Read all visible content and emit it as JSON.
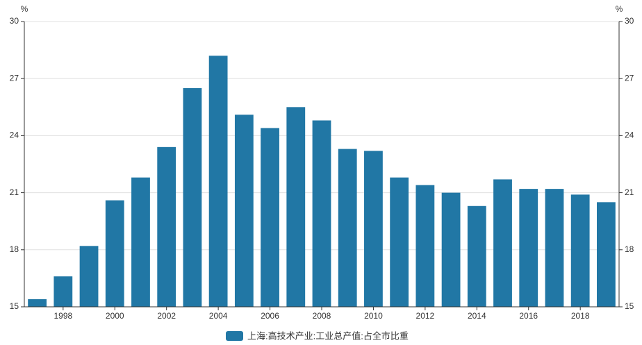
{
  "chart_data": {
    "type": "bar",
    "categories": [
      null,
      "1998",
      null,
      "2000",
      null,
      "2002",
      null,
      "2004",
      null,
      "2006",
      null,
      "2008",
      null,
      "2010",
      null,
      "2012",
      null,
      "2014",
      null,
      "2016",
      null,
      "2018",
      null
    ],
    "series": [
      {
        "name": "上海:高技术产业:工业总产值:占全市比重",
        "color": "#2177a5",
        "values": [
          15.4,
          16.6,
          18.2,
          20.6,
          21.8,
          23.4,
          26.5,
          28.2,
          25.1,
          24.4,
          25.5,
          24.8,
          23.3,
          23.2,
          21.8,
          21.4,
          21.0,
          20.3,
          21.7,
          21.2,
          21.2,
          20.9,
          20.5
        ]
      }
    ],
    "y_unit": "%",
    "y2_unit": "%",
    "ylim": [
      15,
      30
    ],
    "yticks": [
      15,
      18,
      21,
      24,
      27,
      30
    ],
    "y2lim": [
      15,
      30
    ],
    "y2ticks": [
      15,
      18,
      21,
      24,
      27,
      30
    ],
    "grid": true,
    "legend": "bottom"
  }
}
